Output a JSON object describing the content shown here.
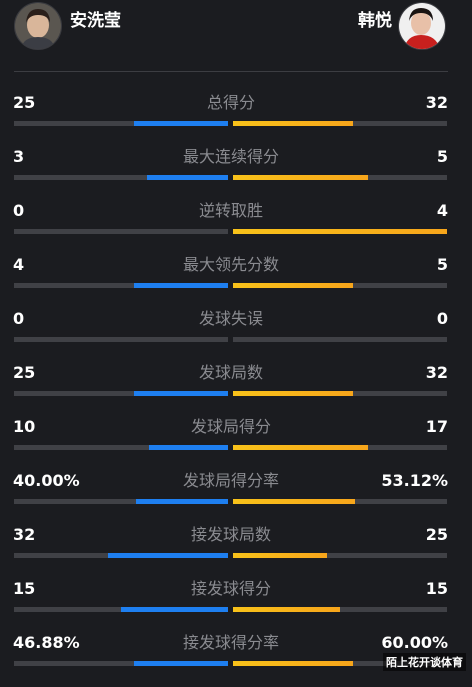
{
  "players": {
    "left": {
      "name": "安洗莹"
    },
    "right": {
      "name": "韩悦"
    }
  },
  "colors": {
    "left_bar": "#1e7ff0",
    "right_bar": "#f8b21a",
    "track": "#404146",
    "label": "#8a8b90"
  },
  "stats": [
    {
      "label": "总得分",
      "left": "25",
      "right": "32",
      "left_share": 0.44,
      "right_share": 0.56
    },
    {
      "label": "最大连续得分",
      "left": "3",
      "right": "5",
      "left_share": 0.38,
      "right_share": 0.63
    },
    {
      "label": "逆转取胜",
      "left": "0",
      "right": "4",
      "left_share": 0.0,
      "right_share": 1.0
    },
    {
      "label": "最大领先分数",
      "left": "4",
      "right": "5",
      "left_share": 0.44,
      "right_share": 0.56
    },
    {
      "label": "发球失误",
      "left": "0",
      "right": "0",
      "left_share": 0.0,
      "right_share": 0.0
    },
    {
      "label": "发球局数",
      "left": "25",
      "right": "32",
      "left_share": 0.44,
      "right_share": 0.56
    },
    {
      "label": "发球局得分",
      "left": "10",
      "right": "17",
      "left_share": 0.37,
      "right_share": 0.63
    },
    {
      "label": "发球局得分率",
      "left": "40.00%",
      "right": "53.12%",
      "left_share": 0.43,
      "right_share": 0.57
    },
    {
      "label": "接发球局数",
      "left": "32",
      "right": "25",
      "left_share": 0.56,
      "right_share": 0.44
    },
    {
      "label": "接发球得分",
      "left": "15",
      "right": "15",
      "left_share": 0.5,
      "right_share": 0.5
    },
    {
      "label": "接发球得分率",
      "left": "46.88%",
      "right": "60.00%",
      "left_share": 0.44,
      "right_share": 0.56
    }
  ],
  "watermark": "陌上花开谈体育"
}
